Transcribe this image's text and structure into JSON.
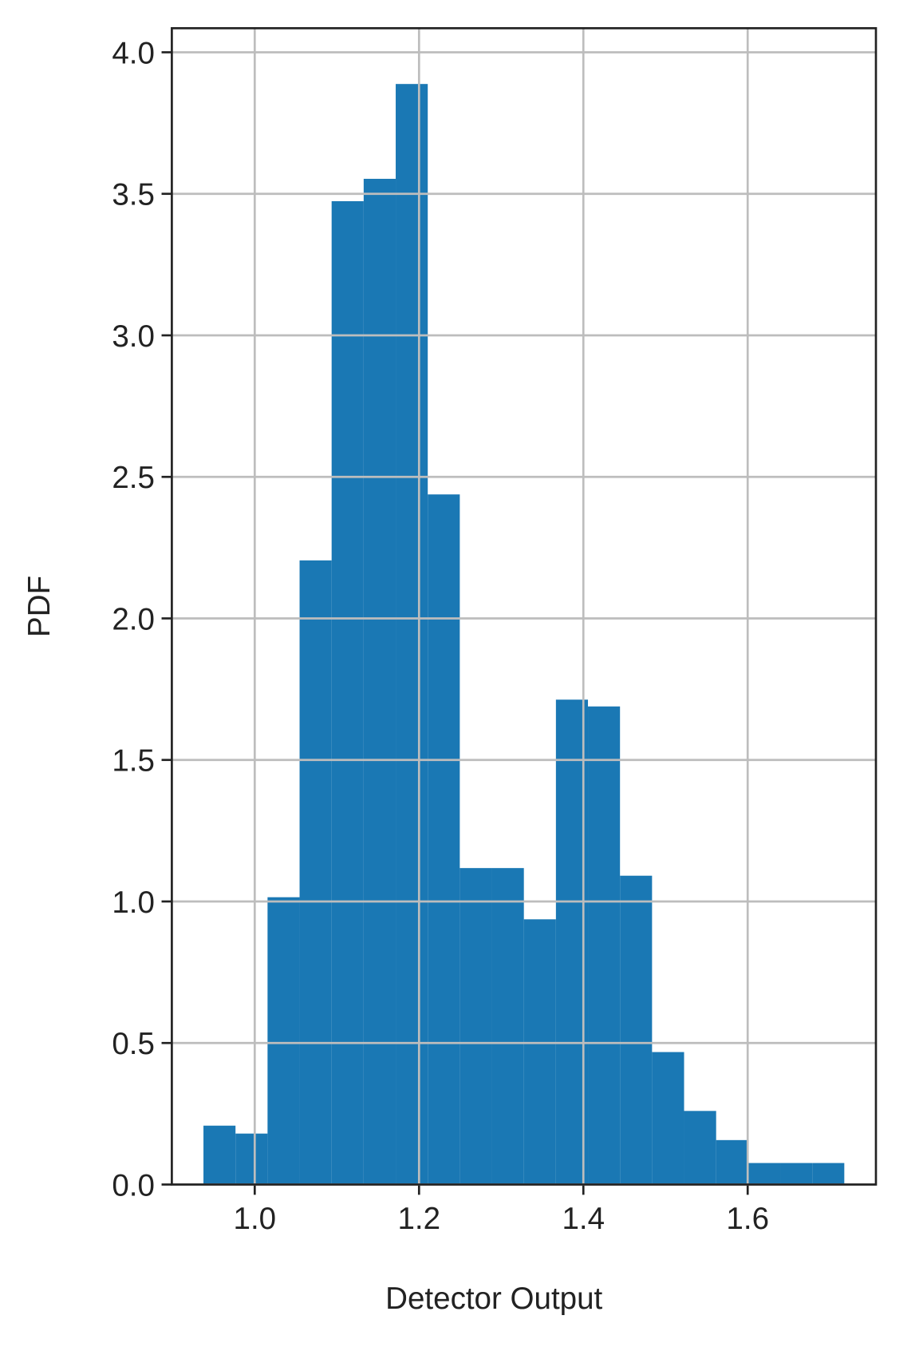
{
  "chart_data": {
    "type": "histogram",
    "x_label": "Detector Output",
    "y_label": "PDF",
    "bins": [
      0.9376,
      0.9766,
      1.0156,
      1.0546,
      1.0936,
      1.1326,
      1.1716,
      1.2106,
      1.2496,
      1.2886,
      1.3276,
      1.3666,
      1.4056,
      1.4446,
      1.4836,
      1.5226,
      1.5616,
      1.6006,
      1.6396,
      1.6786,
      1.7176
    ],
    "values": [
      0.208,
      0.18,
      1.015,
      2.205,
      3.474,
      3.553,
      3.888,
      2.438,
      1.118,
      1.118,
      0.937,
      1.713,
      1.689,
      1.091,
      0.468,
      0.26,
      0.157,
      0.076,
      0.076,
      0.076
    ],
    "color": "#1a78b4",
    "xlim": [
      0.8991,
      1.7561
    ],
    "ylim": [
      0,
      4.085
    ],
    "xticks": [
      {
        "value": 1,
        "label": "1.0"
      },
      1.2,
      1.4,
      1.6
    ],
    "yticks": [
      {
        "value": 0,
        "label": "0.0"
      },
      0.5,
      {
        "value": 1,
        "label": "1.0"
      },
      1.5,
      {
        "value": 2,
        "label": "2.0"
      },
      2.5,
      {
        "value": 3,
        "label": "3.0"
      },
      3.5,
      {
        "value": 4,
        "label": "4.0"
      }
    ],
    "grid": true
  }
}
